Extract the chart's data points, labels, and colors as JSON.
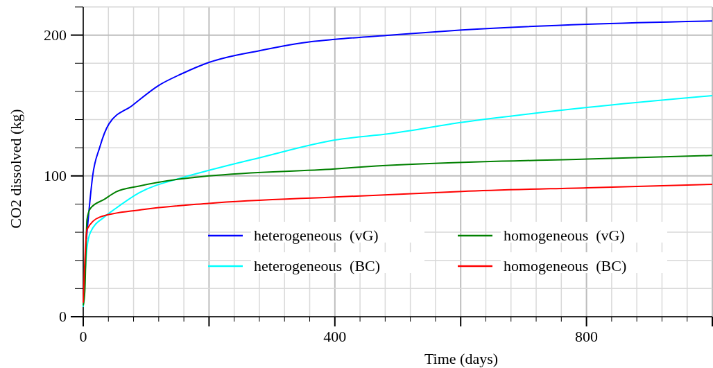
{
  "chart_data": {
    "type": "line",
    "xlabel": "Time (days)",
    "ylabel": "CO2 dissolved (kg)",
    "xlim": [
      0,
      1000
    ],
    "ylim": [
      0,
      220
    ],
    "xticks": [
      0,
      {
        "value": 40,
        "label": null
      },
      {
        "value": 80,
        "label": null
      },
      {
        "value": 120,
        "label": null
      },
      {
        "value": 160,
        "label": null
      },
      {
        "value": 200,
        "label": null
      },
      {
        "value": 240,
        "label": null
      },
      {
        "value": 280,
        "label": null
      },
      {
        "value": 320,
        "label": null
      },
      {
        "value": 360,
        "label": null
      },
      400,
      {
        "value": 440,
        "label": null
      },
      {
        "value": 480,
        "label": null
      },
      {
        "value": 520,
        "label": null
      },
      {
        "value": 560,
        "label": null
      },
      {
        "value": 600,
        "label": null
      },
      {
        "value": 640,
        "label": null
      },
      {
        "value": 680,
        "label": null
      },
      {
        "value": 720,
        "label": null
      },
      {
        "value": 760,
        "label": null
      },
      800,
      {
        "value": 840,
        "label": null
      },
      {
        "value": 880,
        "label": null
      },
      {
        "value": 920,
        "label": null
      },
      {
        "value": 960,
        "label": null
      },
      {
        "value": 1000,
        "label": null
      }
    ],
    "yticks": [
      0,
      {
        "value": 20,
        "label": null
      },
      {
        "value": 40,
        "label": null
      },
      {
        "value": 60,
        "label": null
      },
      {
        "value": 80,
        "label": null
      },
      100,
      {
        "value": 120,
        "label": null
      },
      {
        "value": 140,
        "label": null
      },
      {
        "value": 160,
        "label": null
      },
      {
        "value": 180,
        "label": null
      },
      200,
      {
        "value": 220,
        "label": null
      }
    ],
    "grid": true,
    "legend": "bottom right",
    "marker": "none",
    "line_style": "solid",
    "series": [
      {
        "name": "heterogeneous  (vG)",
        "color": "#0000ff",
        "x": [
          5,
          9.5,
          15,
          26,
          41,
          78,
          119,
          159,
          200,
          281,
          363,
          400,
          488,
          602,
          801,
          1000
        ],
        "values": [
          55,
          77,
          100,
          120,
          137,
          150,
          164,
          173,
          180.6,
          189,
          195.4,
          197,
          200,
          203.6,
          207.7,
          210
        ]
      },
      {
        "name": "heterogeneous  (BC)",
        "color": "#00ffff",
        "x": [
          0,
          6,
          11.5,
          34,
          52,
          89,
          159,
          200,
          281,
          400,
          488,
          602,
          801,
          1000
        ],
        "values": [
          7,
          49,
          60,
          71,
          77,
          88,
          99,
          104,
          113,
          125.5,
          130,
          138,
          148.6,
          157
        ]
      },
      {
        "name": "homogeneous  (vG)",
        "color": "#008000",
        "x": [
          0,
          2.5,
          6,
          11.5,
          34,
          52,
          89,
          152,
          200,
          400,
          466,
          801,
          1000
        ],
        "values": [
          8,
          18,
          69,
          77,
          83.5,
          88.6,
          92.8,
          97.7,
          100,
          105,
          107,
          112,
          114.5
        ]
      },
      {
        "name": "homogeneous  (BC)",
        "color": "#ff0000",
        "x": [
          0,
          6,
          26,
          93,
          200,
          400,
          503,
          602,
          801,
          1000
        ],
        "values": [
          10,
          62,
          70.7,
          76,
          80.5,
          85,
          87,
          89,
          91.6,
          94
        ]
      }
    ]
  }
}
